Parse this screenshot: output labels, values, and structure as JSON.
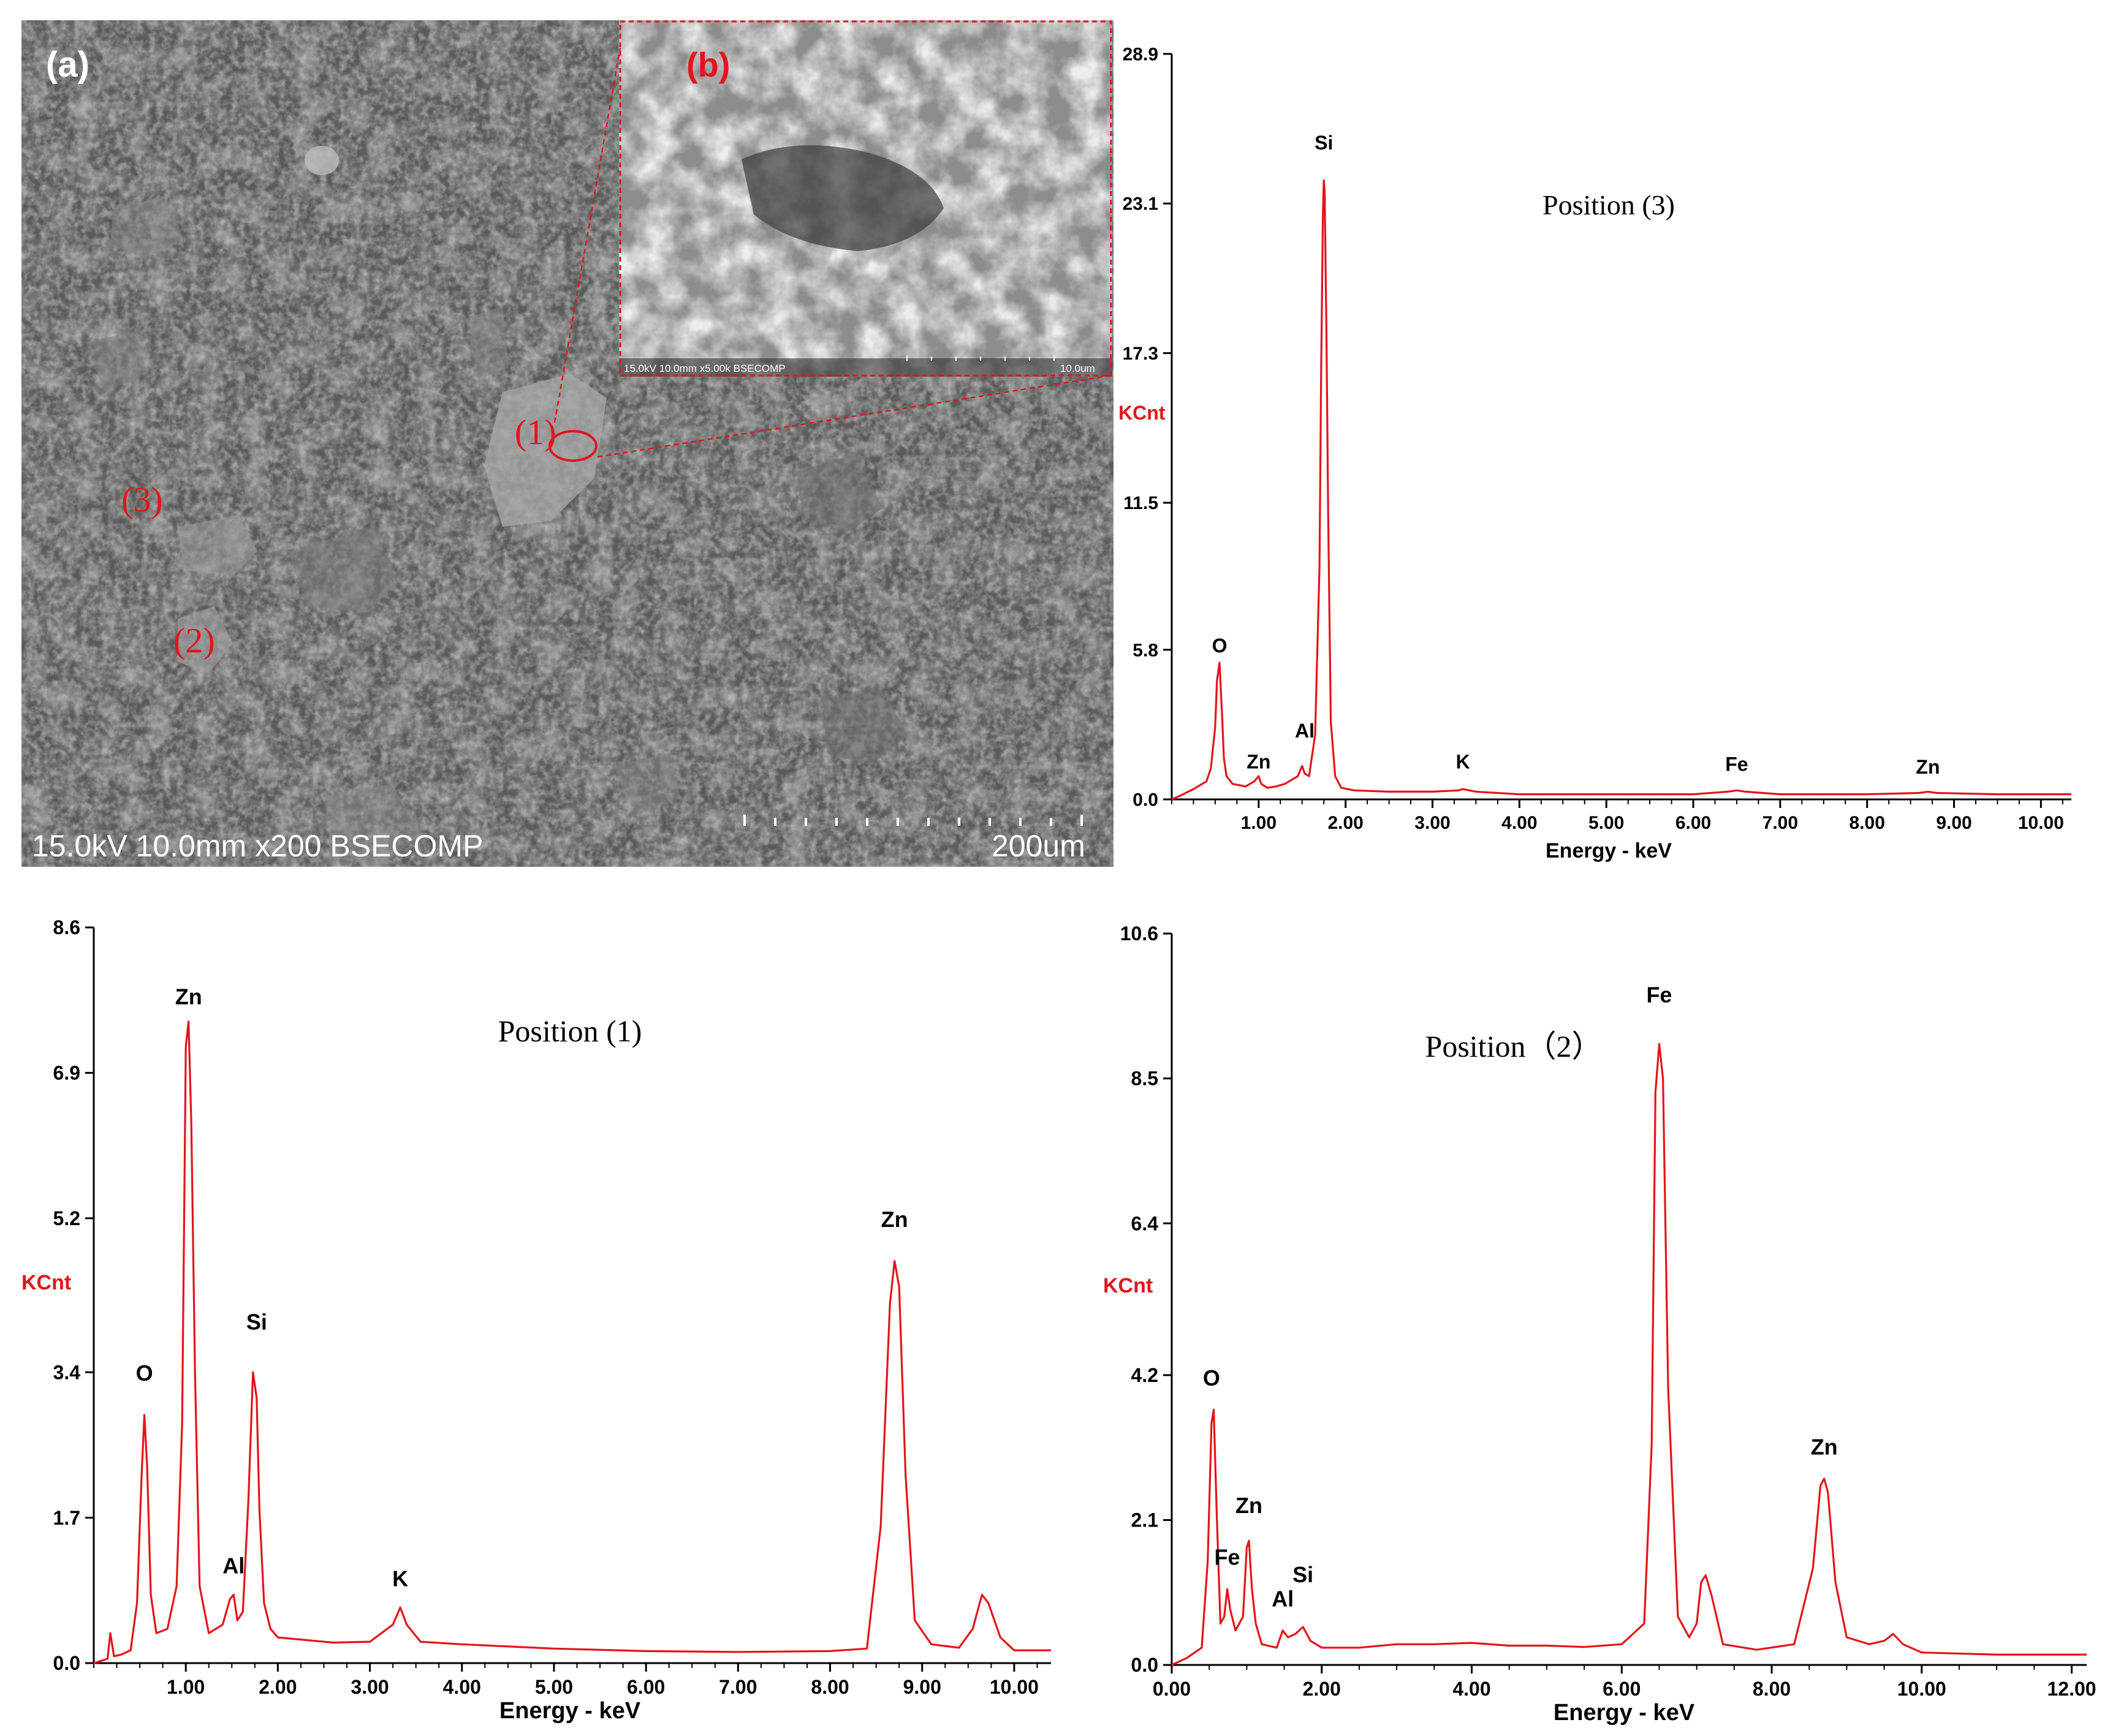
{
  "colors": {
    "trace": "#e3141b",
    "kcnt": "#e3141b",
    "label_red": "#e3141b",
    "axis": "#000000"
  },
  "sem": {
    "panel_a_label": "(a)",
    "panel_b_label": "(b)",
    "footer_left": "15.0kV 10.0mm x200 BSECOMP",
    "footer_right": "200um",
    "inset_footer_left": "15.0kV 10.0mm x5.00k BSECOMP",
    "inset_footer_right": "10.0um",
    "marker_1": "(1)",
    "marker_2": "(2)",
    "marker_3": "(3)"
  },
  "chart_data": [
    {
      "id": "pos3",
      "type": "line",
      "title": "Position (3)",
      "xlabel": "Energy - keV",
      "ylabel": "KCnt",
      "xlim": [
        0,
        10.35
      ],
      "ylim": [
        0,
        28.9
      ],
      "xticks": [
        1,
        2,
        3,
        4,
        5,
        6,
        7,
        8,
        9,
        10
      ],
      "xtick_labels": [
        "1.00",
        "2.00",
        "3.00",
        "4.00",
        "5.00",
        "6.00",
        "7.00",
        "8.00",
        "9.00",
        "10.00"
      ],
      "yticks": [
        0,
        5.8,
        11.5,
        17.3,
        23.1,
        28.9
      ],
      "ytick_labels": [
        "0.0",
        "5.8",
        "11.5",
        "17.3",
        "23.1",
        "28.9"
      ],
      "series": [
        {
          "x": [
            0,
            0.1,
            0.25,
            0.4,
            0.45,
            0.5,
            0.52,
            0.55,
            0.58,
            0.6,
            0.63,
            0.7,
            0.85,
            0.95,
            1.0,
            1.03,
            1.1,
            1.2,
            1.3,
            1.45,
            1.5,
            1.53,
            1.58,
            1.65,
            1.7,
            1.72,
            1.74,
            1.75,
            1.76,
            1.78,
            1.8,
            1.83,
            1.88,
            1.95,
            2.1,
            2.5,
            3.0,
            3.3,
            3.35,
            3.5,
            4.0,
            5.0,
            6.0,
            6.4,
            6.5,
            6.6,
            7.0,
            8.0,
            8.6,
            8.7,
            8.8,
            9.5,
            10.35
          ],
          "y": [
            0,
            0.15,
            0.4,
            0.7,
            1.2,
            2.8,
            4.6,
            5.3,
            3.2,
            1.6,
            0.9,
            0.6,
            0.5,
            0.7,
            0.9,
            0.6,
            0.45,
            0.5,
            0.6,
            0.9,
            1.3,
            1.0,
            0.9,
            2.5,
            9.0,
            17.0,
            22.8,
            24.0,
            23.5,
            18.0,
            11.0,
            3.0,
            0.9,
            0.45,
            0.35,
            0.3,
            0.3,
            0.35,
            0.4,
            0.3,
            0.2,
            0.2,
            0.2,
            0.3,
            0.35,
            0.3,
            0.2,
            0.2,
            0.25,
            0.3,
            0.25,
            0.2,
            0.2
          ]
        }
      ],
      "annotations": [
        {
          "text": "O",
          "x": 0.55,
          "y": 5.7
        },
        {
          "text": "Zn",
          "x": 1.0,
          "y": 1.2
        },
        {
          "text": "Al",
          "x": 1.53,
          "y": 2.4
        },
        {
          "text": "Si",
          "x": 1.75,
          "y": 25.2
        },
        {
          "text": "K",
          "x": 3.35,
          "y": 1.2
        },
        {
          "text": "Fe",
          "x": 6.5,
          "y": 1.1
        },
        {
          "text": "Zn",
          "x": 8.7,
          "y": 1.0
        }
      ],
      "grid": false
    },
    {
      "id": "pos1",
      "type": "line",
      "title": "Position (1)",
      "xlabel": "Energy - keV",
      "ylabel": "KCnt",
      "xlim": [
        0,
        10.4
      ],
      "ylim": [
        0,
        8.6
      ],
      "xticks": [
        1,
        2,
        3,
        4,
        5,
        6,
        7,
        8,
        9,
        10
      ],
      "xtick_labels": [
        "1.00",
        "2.00",
        "3.00",
        "4.00",
        "5.00",
        "6.00",
        "7.00",
        "8.00",
        "9.00",
        "10.00"
      ],
      "yticks": [
        0,
        1.7,
        3.4,
        5.2,
        6.9,
        8.6
      ],
      "ytick_labels": [
        "0.0",
        "1.7",
        "3.4",
        "5.2",
        "6.9",
        "8.6"
      ],
      "series": [
        {
          "x": [
            0,
            0.15,
            0.18,
            0.22,
            0.3,
            0.4,
            0.47,
            0.52,
            0.55,
            0.58,
            0.62,
            0.68,
            0.8,
            0.9,
            0.96,
            1.0,
            1.03,
            1.06,
            1.1,
            1.15,
            1.25,
            1.4,
            1.48,
            1.52,
            1.56,
            1.62,
            1.68,
            1.73,
            1.77,
            1.8,
            1.85,
            1.92,
            2.0,
            2.2,
            2.6,
            3.0,
            3.25,
            3.33,
            3.4,
            3.55,
            4.0,
            5.0,
            6.0,
            7.0,
            8.0,
            8.4,
            8.55,
            8.65,
            8.7,
            8.75,
            8.82,
            8.92,
            9.1,
            9.4,
            9.55,
            9.65,
            9.72,
            9.85,
            10.0,
            10.4
          ],
          "y": [
            0,
            0.05,
            0.35,
            0.08,
            0.1,
            0.15,
            0.7,
            2.2,
            2.9,
            2.3,
            0.8,
            0.35,
            0.4,
            0.9,
            2.8,
            7.2,
            7.5,
            6.3,
            3.4,
            0.9,
            0.35,
            0.45,
            0.75,
            0.8,
            0.5,
            0.6,
            1.9,
            3.4,
            3.1,
            1.8,
            0.7,
            0.4,
            0.3,
            0.28,
            0.24,
            0.25,
            0.45,
            0.65,
            0.45,
            0.25,
            0.22,
            0.17,
            0.14,
            0.13,
            0.14,
            0.17,
            1.6,
            4.2,
            4.7,
            4.4,
            2.2,
            0.5,
            0.22,
            0.18,
            0.4,
            0.8,
            0.7,
            0.3,
            0.15,
            0.15
          ]
        }
      ],
      "annotations": [
        {
          "text": "O",
          "x": 0.55,
          "y": 3.3
        },
        {
          "text": "Zn",
          "x": 1.03,
          "y": 7.7
        },
        {
          "text": "Al",
          "x": 1.52,
          "y": 1.05
        },
        {
          "text": "Si",
          "x": 1.77,
          "y": 3.9
        },
        {
          "text": "K",
          "x": 3.33,
          "y": 0.9
        },
        {
          "text": "Zn",
          "x": 8.7,
          "y": 5.1
        }
      ],
      "grid": false
    },
    {
      "id": "pos2",
      "type": "line",
      "title": "Position（2）",
      "xlabel": "Energy - keV",
      "ylabel": "KCnt",
      "xlim": [
        0,
        12.2
      ],
      "ylim": [
        0,
        10.6
      ],
      "xticks": [
        0,
        2,
        4,
        6,
        8,
        10,
        12
      ],
      "xtick_labels": [
        "0.00",
        "2.00",
        "4.00",
        "6.00",
        "8.00",
        "10.00",
        "12.00"
      ],
      "yticks": [
        0,
        2.1,
        4.2,
        6.4,
        8.5,
        10.6
      ],
      "ytick_labels": [
        "0.0",
        "2.1",
        "4.2",
        "6.4",
        "8.5",
        "10.6"
      ],
      "series": [
        {
          "x": [
            0,
            0.2,
            0.4,
            0.48,
            0.53,
            0.56,
            0.6,
            0.65,
            0.7,
            0.74,
            0.78,
            0.85,
            0.95,
            1.0,
            1.03,
            1.07,
            1.12,
            1.2,
            1.4,
            1.48,
            1.55,
            1.65,
            1.75,
            1.85,
            2.0,
            2.5,
            3.0,
            3.5,
            4.0,
            4.5,
            5.0,
            5.5,
            6.0,
            6.3,
            6.4,
            6.45,
            6.5,
            6.55,
            6.62,
            6.75,
            6.9,
            7.0,
            7.06,
            7.12,
            7.2,
            7.35,
            7.8,
            8.3,
            8.55,
            8.65,
            8.7,
            8.75,
            8.85,
            9.0,
            9.3,
            9.5,
            9.62,
            9.75,
            10.0,
            11.0,
            12.2
          ],
          "y": [
            0,
            0.1,
            0.25,
            1.5,
            3.5,
            3.7,
            2.2,
            0.6,
            0.7,
            1.1,
            0.8,
            0.5,
            0.7,
            1.7,
            1.8,
            1.1,
            0.6,
            0.3,
            0.25,
            0.5,
            0.4,
            0.45,
            0.55,
            0.35,
            0.25,
            0.25,
            0.3,
            0.3,
            0.32,
            0.28,
            0.28,
            0.26,
            0.3,
            0.6,
            3.2,
            8.3,
            9.0,
            8.5,
            4.0,
            0.7,
            0.4,
            0.6,
            1.2,
            1.3,
            1.0,
            0.3,
            0.22,
            0.3,
            1.4,
            2.6,
            2.7,
            2.5,
            1.2,
            0.4,
            0.3,
            0.35,
            0.45,
            0.3,
            0.18,
            0.15,
            0.15
          ]
        }
      ],
      "annotations": [
        {
          "text": "O",
          "x": 0.53,
          "y": 4.05
        },
        {
          "text": "Fe",
          "x": 0.74,
          "y": 1.45
        },
        {
          "text": "Zn",
          "x": 1.03,
          "y": 2.2
        },
        {
          "text": "Al",
          "x": 1.48,
          "y": 0.85
        },
        {
          "text": "Si",
          "x": 1.75,
          "y": 1.2
        },
        {
          "text": "Fe",
          "x": 6.5,
          "y": 9.6
        },
        {
          "text": "Zn",
          "x": 8.7,
          "y": 3.05
        }
      ],
      "grid": false
    }
  ]
}
